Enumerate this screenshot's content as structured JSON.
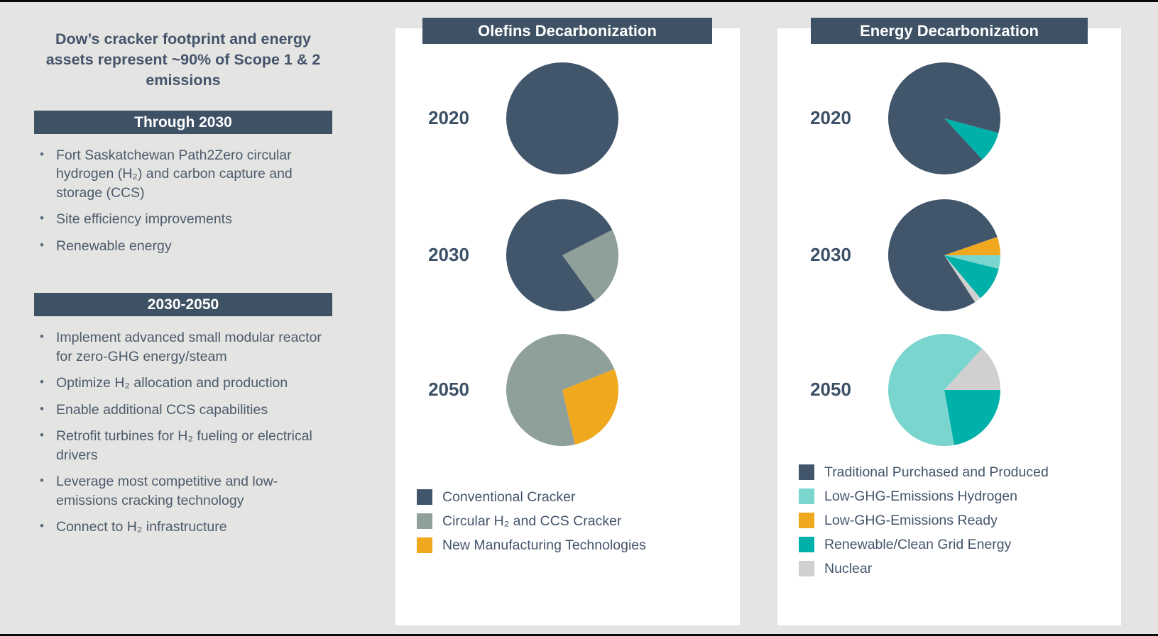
{
  "page": {
    "background": "#e4e4e3",
    "card_background": "#ffffff",
    "header_bar_color": "#3f5265",
    "text_color": "#44546a"
  },
  "left_panel": {
    "title": "Dow’s cracker footprint and energy assets represent ~90% of Scope 1 & 2 emissions",
    "sections": [
      {
        "header": "Through 2030",
        "bullets": [
          "Fort Saskatchewan Path2Zero circular hydrogen (H₂) and carbon capture and storage (CCS)",
          "Site efficiency improvements",
          "Renewable energy"
        ]
      },
      {
        "header": "2030-2050",
        "bullets": [
          "Implement advanced small modular reactor for zero-GHG energy/steam",
          "Optimize H₂ allocation and production",
          "Enable additional CCS capabilities",
          "Retrofit turbines for H₂ fueling or electrical drivers",
          "Leverage most competitive and low-emissions cracking technology",
          "Connect to H₂ infrastructure"
        ]
      }
    ]
  },
  "chart_data": [
    {
      "type": "pie",
      "panel_title": "Olefins Decarbonization",
      "legend_position": "bottom-left",
      "legend": [
        {
          "label": "Conventional Cracker",
          "color": "#42566b"
        },
        {
          "label": "Circular H₂ and CCS Cracker",
          "color": "#8fa09b"
        },
        {
          "label": "New Manufacturing Technologies",
          "color": "#f0a81e"
        }
      ],
      "pies": [
        {
          "year": "2020",
          "slices": [
            {
              "label": "Conventional Cracker",
              "pct": 100,
              "start_deg": 0,
              "color": "#42566b"
            }
          ]
        },
        {
          "year": "2030",
          "slices": [
            {
              "label": "Circular H₂ and CCS Cracker",
              "pct": 22.5,
              "start_deg": 63,
              "color": "#8fa09b"
            },
            {
              "label": "Conventional Cracker",
              "pct": 77.5,
              "start_deg": 144,
              "color": "#42566b"
            }
          ]
        },
        {
          "year": "2050",
          "slices": [
            {
              "label": "New Manufacturing Technologies",
              "pct": 27.5,
              "start_deg": 68,
              "color": "#f0a81e"
            },
            {
              "label": "Circular H₂ and CCS Cracker",
              "pct": 72.5,
              "start_deg": 167,
              "color": "#8fa09b"
            }
          ]
        }
      ]
    },
    {
      "type": "pie",
      "panel_title": "Energy Decarbonization",
      "legend_position": "bottom-left",
      "legend": [
        {
          "label": "Traditional Purchased and Produced",
          "color": "#42566b"
        },
        {
          "label": "Low-GHG-Emissions Hydrogen",
          "color": "#7bd5cf"
        },
        {
          "label": "Low-GHG-Emissions Ready",
          "color": "#f0a81e"
        },
        {
          "label": "Renewable/Clean Grid Energy",
          "color": "#00b1a9"
        },
        {
          "label": "Nuclear",
          "color": "#d0d0d0"
        }
      ],
      "pies": [
        {
          "year": "2020",
          "slices": [
            {
              "label": "Renewable/Clean Grid Energy",
              "pct": 9,
              "start_deg": 105,
              "color": "#00b1a9"
            },
            {
              "label": "Traditional Purchased and Produced",
              "pct": 91,
              "start_deg": 137.4,
              "color": "#42566b"
            }
          ]
        },
        {
          "year": "2030",
          "slices": [
            {
              "label": "Low-GHG-Emissions Ready",
              "pct": 5.3,
              "start_deg": 71,
              "color": "#f0a81e"
            },
            {
              "label": "Low-GHG-Emissions Hydrogen",
              "pct": 3.9,
              "start_deg": 90,
              "color": "#7bd5cf"
            },
            {
              "label": "Renewable/Clean Grid Energy",
              "pct": 10,
              "start_deg": 104,
              "color": "#00b1a9"
            },
            {
              "label": "Nuclear",
              "pct": 1.9,
              "start_deg": 140,
              "color": "#d0d0d0"
            },
            {
              "label": "Traditional Purchased and Produced",
              "pct": 78.9,
              "start_deg": 146.8,
              "color": "#42566b"
            }
          ]
        },
        {
          "year": "2050",
          "slices": [
            {
              "label": "Nuclear",
              "pct": 13.3,
              "start_deg": 42,
              "color": "#d0d0d0"
            },
            {
              "label": "Renewable/Clean Grid Energy",
              "pct": 22.2,
              "start_deg": 90,
              "color": "#00b1a9"
            },
            {
              "label": "Low-GHG-Emissions Hydrogen",
              "pct": 64.5,
              "start_deg": 170,
              "color": "#7bd5cf"
            }
          ]
        }
      ]
    }
  ]
}
